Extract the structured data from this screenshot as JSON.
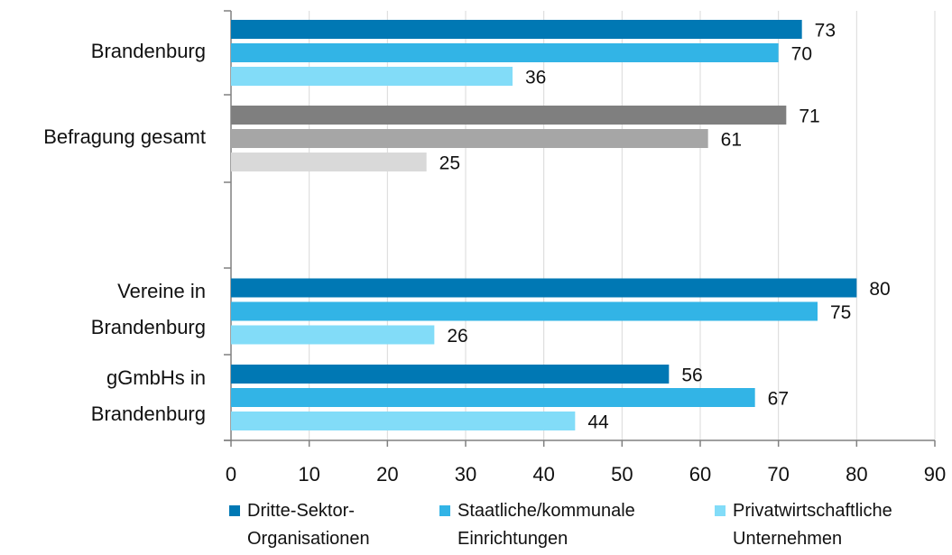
{
  "chart_data": {
    "type": "bar",
    "orientation": "horizontal",
    "categories": [
      "Brandenburg",
      "Befragung gesamt",
      "",
      "Vereine in\nBrandenburg",
      "gGmbHs in\nBrandenburg"
    ],
    "groups": [
      {
        "label_lines": [
          "Brandenburg"
        ],
        "values": [
          73,
          70,
          36
        ],
        "colors": [
          "#0078b4",
          "#32b4e6",
          "#82dcf8"
        ]
      },
      {
        "label_lines": [
          "Befragung gesamt"
        ],
        "values": [
          71,
          61,
          25
        ],
        "colors": [
          "#7f7f7f",
          "#a6a6a6",
          "#d9d9d9"
        ]
      },
      {
        "label_lines": [],
        "values": [],
        "colors": []
      },
      {
        "label_lines": [
          "Vereine in",
          "Brandenburg"
        ],
        "values": [
          80,
          75,
          26
        ],
        "colors": [
          "#0078b4",
          "#32b4e6",
          "#82dcf8"
        ]
      },
      {
        "label_lines": [
          "gGmbHs in",
          "Brandenburg"
        ],
        "values": [
          56,
          67,
          44
        ],
        "colors": [
          "#0078b4",
          "#32b4e6",
          "#82dcf8"
        ]
      }
    ],
    "series": [
      {
        "name_lines": [
          "Dritte-Sektor-",
          "Organisationen"
        ],
        "color": "#0078b4"
      },
      {
        "name_lines": [
          "Staatliche/kommunale",
          "Einrichtungen"
        ],
        "color": "#32b4e6"
      },
      {
        "name_lines": [
          "Privatwirtschaftliche",
          "Unternehmen"
        ],
        "color": "#82dcf8"
      }
    ],
    "xlim": [
      0,
      90
    ],
    "xticks": [
      0,
      10,
      20,
      30,
      40,
      50,
      60,
      70,
      80,
      90
    ],
    "grid": true,
    "legend_position": "bottom",
    "title": "",
    "xlabel": "",
    "ylabel": ""
  }
}
